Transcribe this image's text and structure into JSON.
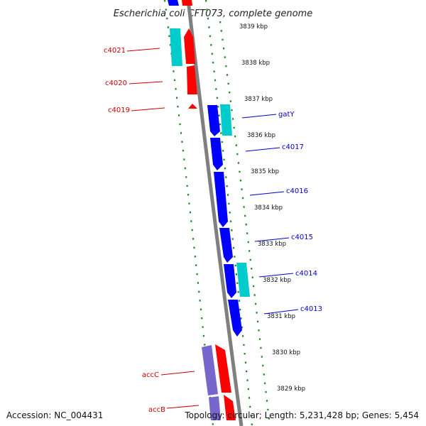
{
  "title": "Escherichia coli CFT073, complete genome",
  "footer": {
    "accession": "Accession: NC_004431",
    "topology": "Topology: circular; Length: 5,231,428 bp; Genes: 5,454"
  },
  "colors": {
    "backbone": "#7f7f7f",
    "tick": "#228B22",
    "forward_cds": "#ff0000",
    "reverse_cds": "#0000ff",
    "rna": "#00cccc",
    "other": "#7766cc",
    "left_label": "#cc0000",
    "right_label": "#0000cc"
  },
  "kbp_labels": [
    "3839 kbp",
    "3838 kbp",
    "3837 kbp",
    "3836 kbp",
    "3835 kbp",
    "3834 kbp",
    "3833 kbp",
    "3832 kbp",
    "3831 kbp",
    "3830 kbp",
    "3829 kbp"
  ],
  "gene_labels_left": [
    "c4021",
    "c4020",
    "c4019",
    "accC",
    "accB"
  ],
  "gene_labels_right": [
    "gatY",
    "c4017",
    "c4016",
    "c4015",
    "c4014",
    "c4013"
  ]
}
